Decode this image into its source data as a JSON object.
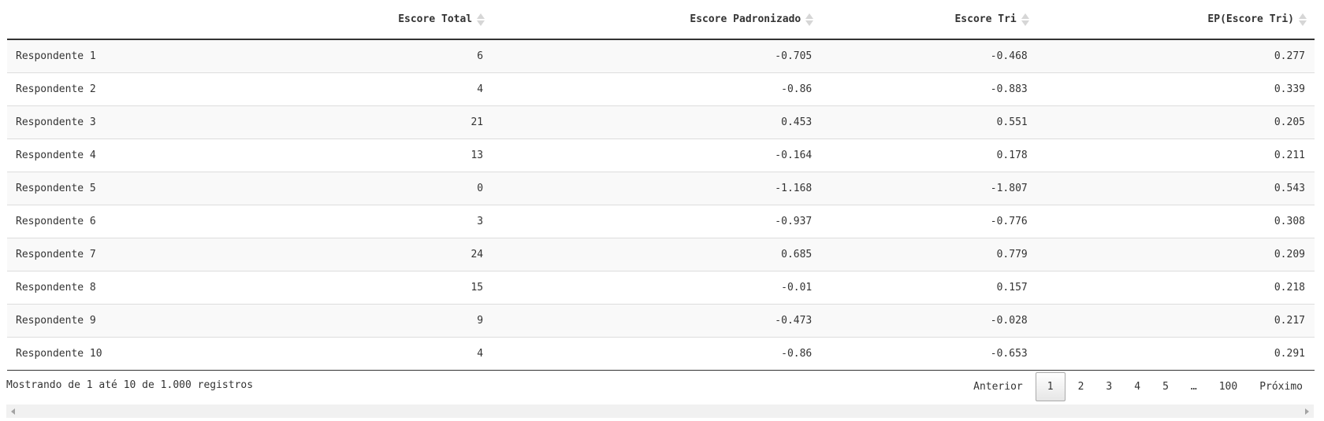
{
  "table": {
    "columns": [
      "",
      "Escore Total",
      "Escore Padronizado",
      "Escore Tri",
      "EP(Escore Tri)"
    ],
    "rows": [
      [
        "Respondente 1",
        "6",
        "-0.705",
        "-0.468",
        "0.277"
      ],
      [
        "Respondente 2",
        "4",
        "-0.86",
        "-0.883",
        "0.339"
      ],
      [
        "Respondente 3",
        "21",
        "0.453",
        "0.551",
        "0.205"
      ],
      [
        "Respondente 4",
        "13",
        "-0.164",
        "0.178",
        "0.211"
      ],
      [
        "Respondente 5",
        "0",
        "-1.168",
        "-1.807",
        "0.543"
      ],
      [
        "Respondente 6",
        "3",
        "-0.937",
        "-0.776",
        "0.308"
      ],
      [
        "Respondente 7",
        "24",
        "0.685",
        "0.779",
        "0.209"
      ],
      [
        "Respondente 8",
        "15",
        "-0.01",
        "0.157",
        "0.218"
      ],
      [
        "Respondente 9",
        "9",
        "-0.473",
        "-0.028",
        "0.217"
      ],
      [
        "Respondente 10",
        "4",
        "-0.86",
        "-0.653",
        "0.291"
      ]
    ]
  },
  "footer": {
    "info": "Mostrando de 1 até 10 de 1.000 registros"
  },
  "pagination": {
    "previous": "Anterior",
    "pages": [
      "1",
      "2",
      "3",
      "4",
      "5",
      "…",
      "100"
    ],
    "current": "1",
    "next": "Próximo"
  },
  "colors": {
    "header_border": "#333333",
    "row_border": "#dddddd",
    "odd_row": "#f9f9f9",
    "sort_icon": "#d6d6d6"
  }
}
